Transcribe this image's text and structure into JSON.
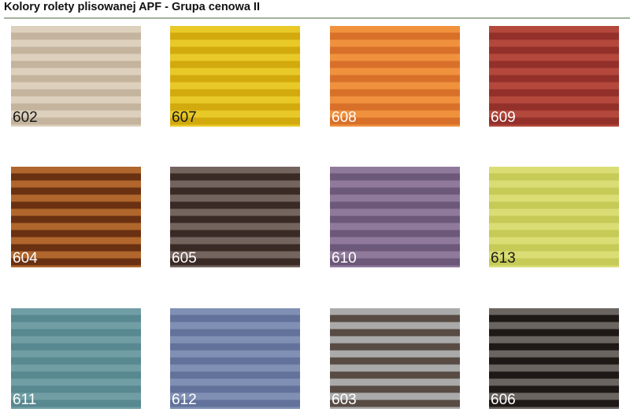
{
  "header": {
    "title": "Kolory rolety plisowanej APF - Grupa cenowa II"
  },
  "swatches": [
    {
      "code": "602",
      "light": "#ddd0bd",
      "dark": "#c4b49e",
      "label_color": "#1a1a1a"
    },
    {
      "code": "607",
      "light": "#e8c928",
      "dark": "#d2aa0e",
      "label_color": "#1a1a1a"
    },
    {
      "code": "608",
      "light": "#f0913e",
      "dark": "#d8702a",
      "label_color": "#ffffff"
    },
    {
      "code": "609",
      "light": "#b4483c",
      "dark": "#93302a",
      "label_color": "#ffffff"
    },
    {
      "code": "604",
      "light": "#b0662c",
      "dark": "#6a3012",
      "label_color": "#ffffff"
    },
    {
      "code": "605",
      "light": "#74645e",
      "dark": "#3a2a26",
      "label_color": "#ffffff"
    },
    {
      "code": "610",
      "light": "#907a9c",
      "dark": "#6c5878",
      "label_color": "#ffffff"
    },
    {
      "code": "613",
      "light": "#dadd74",
      "dark": "#c6ca56",
      "label_color": "#1a1a1a"
    },
    {
      "code": "611",
      "light": "#709ea4",
      "dark": "#588890",
      "label_color": "#ffffff"
    },
    {
      "code": "612",
      "light": "#8090b4",
      "dark": "#62729a",
      "label_color": "#ffffff"
    },
    {
      "code": "603",
      "light": "#aaaaaa",
      "dark": "#574b44",
      "label_color": "#ffffff"
    },
    {
      "code": "606",
      "light": "#6a6560",
      "dark": "#1e1816",
      "label_color": "#ffffff"
    }
  ]
}
